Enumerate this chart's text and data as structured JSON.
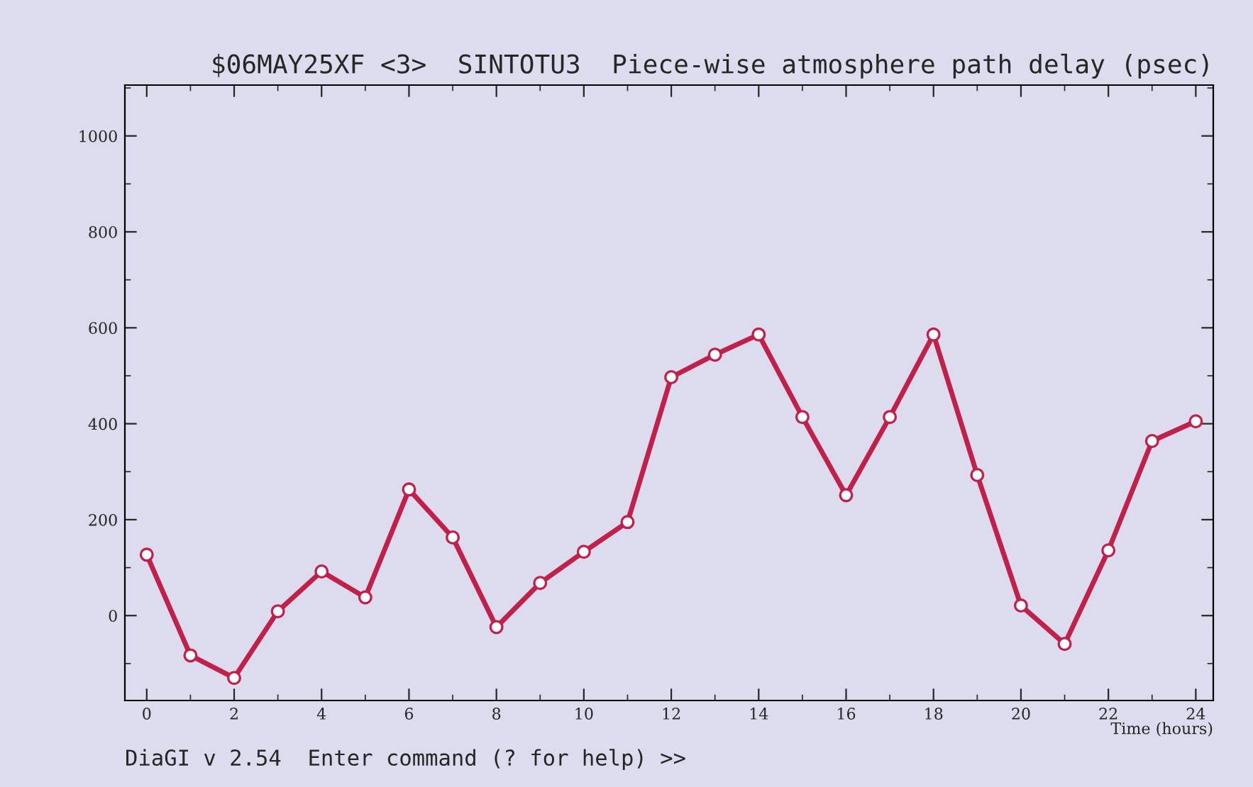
{
  "chart_data": {
    "type": "line",
    "title": "$06MAY25XF <3>  SINTOTU3  Piece-wise atmosphere path delay (psec)",
    "xlabel": "Time (hours)",
    "annotations": [
      "DiaGI v 2.54  Enter command (? for help) >>"
    ],
    "x": [
      0,
      1,
      2,
      3,
      4,
      5,
      6,
      7,
      8,
      9,
      10,
      11,
      12,
      13,
      14,
      15,
      16,
      17,
      18,
      19,
      20,
      21,
      22,
      23,
      24
    ],
    "series": [
      {
        "color": "#c0204a",
        "values": [
          127,
          -83,
          -130,
          9,
          92,
          38,
          263,
          163,
          -24,
          68,
          133,
          195,
          497,
          544,
          586,
          414,
          251,
          414,
          586,
          293,
          21,
          -59,
          136,
          364,
          405
        ]
      }
    ],
    "xlim": [
      -0.5,
      24.4
    ],
    "xticks": [
      0,
      2,
      4,
      6,
      8,
      10,
      12,
      14,
      16,
      18,
      20,
      22,
      24
    ],
    "ylim": [
      -177,
      1106
    ],
    "yticks": [
      0,
      200,
      400,
      600,
      800,
      1000
    ],
    "grid": false,
    "legend": false,
    "marker": "circle",
    "line_style": "solid"
  }
}
